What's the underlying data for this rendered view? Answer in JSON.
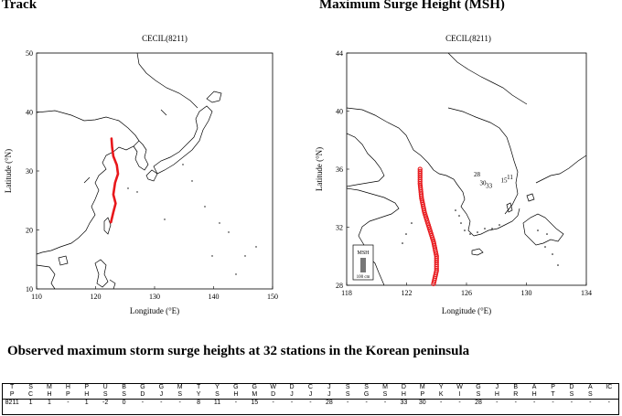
{
  "headings": {
    "track": "Track",
    "msh": "Maximum Surge Height (MSH)"
  },
  "track_map": {
    "title": "CECIL(8211)",
    "xlabel": "Longitude (°E)",
    "ylabel": "Latitude (°N)",
    "xlim": [
      110,
      150
    ],
    "ylim": [
      10,
      50
    ],
    "xticks": [
      "110",
      "120",
      "130",
      "140",
      "150"
    ],
    "yticks": [
      "10",
      "20",
      "30",
      "40",
      "50"
    ],
    "track_color": "#e8171b",
    "track_points": [
      [
        122.6,
        21.3
      ],
      [
        123.0,
        23.0
      ],
      [
        123.4,
        24.5
      ],
      [
        123.0,
        26.0
      ],
      [
        123.3,
        28.0
      ],
      [
        123.8,
        29.5
      ],
      [
        123.6,
        31.0
      ],
      [
        123.0,
        32.5
      ],
      [
        122.8,
        34.0
      ],
      [
        122.7,
        35.5
      ]
    ]
  },
  "msh_map": {
    "title": "CECIL(8211)",
    "xlabel": "Longitude (°E)",
    "ylabel": "Latitude (°N)",
    "xlim": [
      118,
      134
    ],
    "ylim": [
      28,
      44
    ],
    "xticks": [
      "118",
      "122",
      "126",
      "130",
      "134"
    ],
    "yticks": [
      "28",
      "32",
      "36",
      "40",
      "44"
    ],
    "track_color": "#e8171b",
    "track_points": [
      [
        122.9,
        36.0
      ],
      [
        122.9,
        35.0
      ],
      [
        123.0,
        34.0
      ],
      [
        123.2,
        33.0
      ],
      [
        123.5,
        32.0
      ],
      [
        123.8,
        31.0
      ],
      [
        124.0,
        30.0
      ],
      [
        124.0,
        29.0
      ],
      [
        123.8,
        28.1
      ]
    ],
    "legend_title": "MSH",
    "legend_scale": "100 cm",
    "station_labels": [
      {
        "text": "28",
        "lon": 126.7,
        "lat": 35.5
      },
      {
        "text": "30",
        "lon": 127.1,
        "lat": 34.9
      },
      {
        "text": "33",
        "lon": 127.5,
        "lat": 34.7
      },
      {
        "text": "15",
        "lon": 128.5,
        "lat": 35.1
      },
      {
        "text": "11",
        "lon": 128.9,
        "lat": 35.3
      }
    ]
  },
  "observed": {
    "title": "Observed maximum storm surge heights at 32 stations in the Korean peninsula",
    "codes_top": [
      "T",
      "S",
      "M",
      "H",
      "P",
      "U",
      "B",
      "G",
      "G",
      "M",
      "T",
      "Y",
      "G",
      "G",
      "W",
      "D",
      "C",
      "J",
      "S",
      "S",
      "M",
      "D",
      "M",
      "Y",
      "W",
      "G",
      "J",
      "B",
      "A",
      "P",
      "D",
      "A",
      "IC"
    ],
    "codes_bottom": [
      "P",
      "C",
      "H",
      "P",
      "H",
      "S",
      "S",
      "D",
      "J",
      "S",
      "Y",
      "S",
      "H",
      "M",
      "D",
      "J",
      "J",
      "J",
      "S",
      "G",
      "S",
      "H",
      "P",
      "K",
      "I",
      "S",
      "H",
      "R",
      "H",
      "T",
      "S",
      "S",
      ""
    ],
    "values": [
      "8211",
      "1",
      "1",
      "-",
      "1",
      "-2",
      "0",
      "-",
      "-",
      "-",
      "8",
      "11",
      "-",
      "15",
      "-",
      "-",
      "-",
      "28",
      "-",
      "-",
      "-",
      "33",
      "30",
      "-",
      "-",
      "28",
      "-",
      "-",
      "-",
      "-",
      "-",
      "-",
      "-"
    ]
  }
}
